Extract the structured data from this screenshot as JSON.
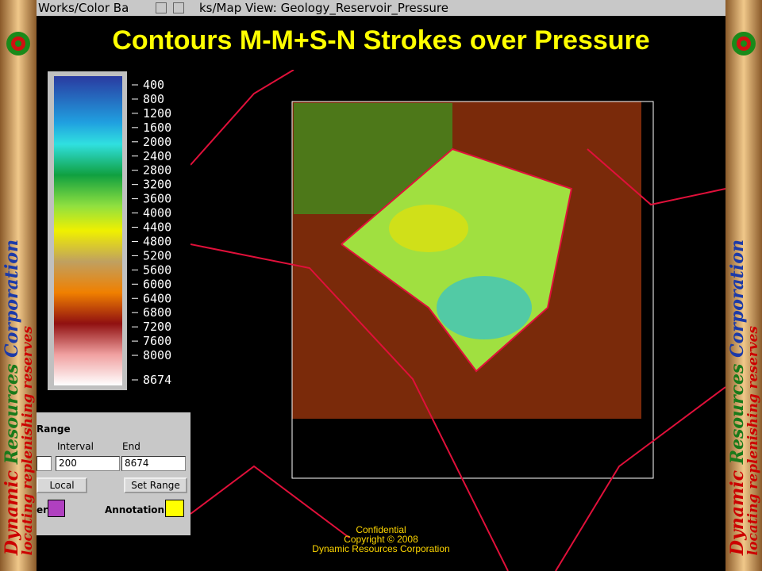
{
  "window_titles": [
    "Works/Color Ba",
    "ks/Map View: Geology_Reservoir_Pressure"
  ],
  "title": "Contours M-M+S-N Strokes over Pressure",
  "colorbar": {
    "labels": [
      400,
      800,
      1200,
      1600,
      2000,
      2400,
      2800,
      3200,
      3600,
      4000,
      4400,
      4800,
      5200,
      5600,
      6000,
      6400,
      6800,
      7200,
      7600,
      8000,
      8674
    ]
  },
  "range_panel": {
    "heading": "Range",
    "interval_label": "Interval",
    "end_label": "End",
    "interval": "200",
    "end": "8674",
    "mode": "Local",
    "button": "Set Range",
    "color_label": "er",
    "annotation_label": "Annotation"
  },
  "footer": [
    "Confidential",
    "Copyright © 2008",
    "Dynamic Resources Corporation"
  ],
  "banner": {
    "company": [
      "Dynamic",
      "Resources",
      "Corporation"
    ],
    "tagline": "locating replenishing reserves"
  }
}
